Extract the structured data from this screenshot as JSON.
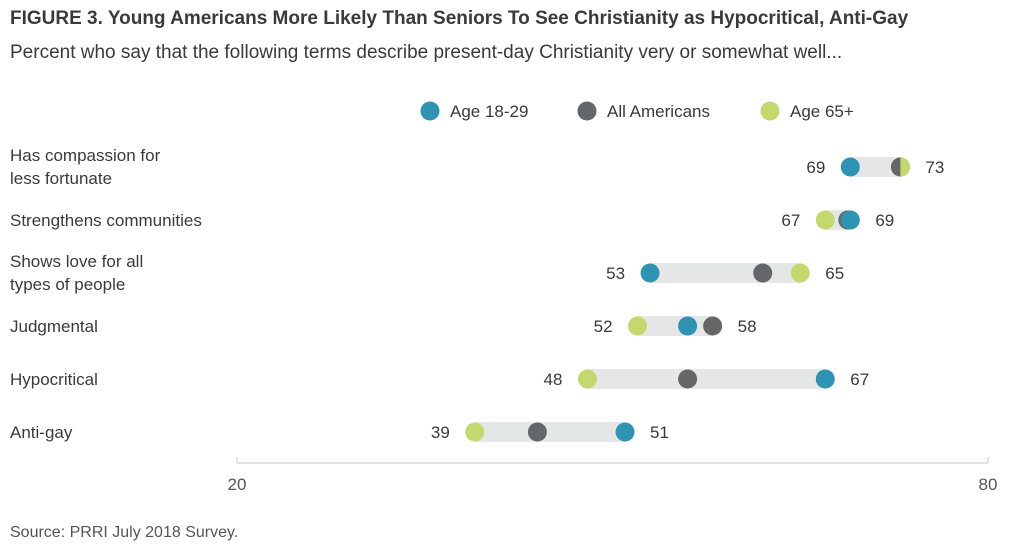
{
  "title": "FIGURE 3. Young Americans More Likely Than Seniors To See Christianity as Hypocritical, Anti-Gay",
  "subtitle": "Percent who say that the following terms describe present-day Christianity very or somewhat well...",
  "source": "Source: PRRI July 2018 Survey.",
  "chart_data": {
    "type": "dot-range",
    "xlim": [
      20,
      80
    ],
    "xticks": [
      "20",
      "80"
    ],
    "legend_position": "top",
    "series": [
      {
        "name": "Age 18-29",
        "color": "#2f94b4"
      },
      {
        "name": "All Americans",
        "color": "#646668"
      },
      {
        "name": "Age 65+",
        "color": "#c3d96e"
      }
    ],
    "rows": [
      {
        "label": [
          "Has compassion for",
          "less fortunate"
        ],
        "values": [
          69,
          73,
          73
        ],
        "low_label": "69",
        "high_label": "73"
      },
      {
        "label": [
          "Strengthens communities"
        ],
        "values": [
          69,
          68.8,
          67
        ],
        "low_label": "67",
        "high_label": "69"
      },
      {
        "label": [
          "Shows love for all",
          "types of people"
        ],
        "values": [
          53,
          62,
          65
        ],
        "low_label": "53",
        "high_label": "65"
      },
      {
        "label": [
          "Judgmental"
        ],
        "values": [
          56,
          58,
          52
        ],
        "low_label": "52",
        "high_label": "58"
      },
      {
        "label": [
          "Hypocritical"
        ],
        "values": [
          67,
          56,
          48
        ],
        "low_label": "48",
        "high_label": "67"
      },
      {
        "label": [
          "Anti-gay"
        ],
        "values": [
          51,
          44,
          39
        ],
        "low_label": "39",
        "high_label": "51"
      }
    ]
  }
}
